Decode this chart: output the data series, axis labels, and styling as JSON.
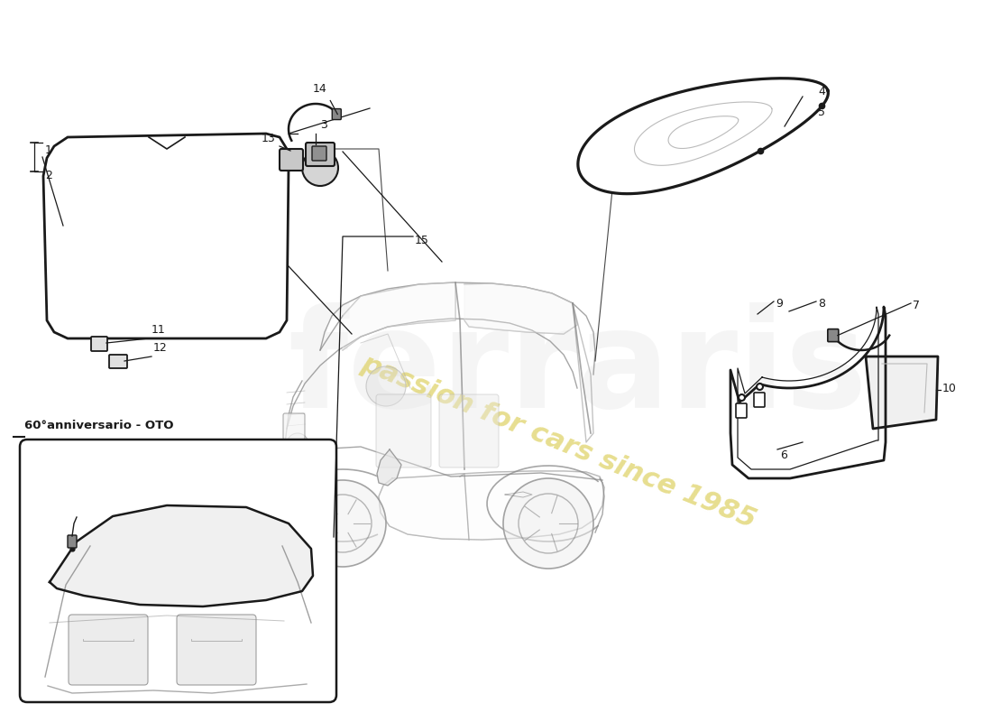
{
  "background_color": "#ffffff",
  "line_color": "#1a1a1a",
  "car_line_color": "#888888",
  "watermark_yellow": "#ddd060",
  "watermark_gray": "#cccccc",
  "watermark_text": "passion for cars since 1985",
  "box_label": "60°anniversario - OTO",
  "label_fontsize": 9,
  "lw_part": 2.0,
  "lw_thin": 0.9,
  "lw_car": 1.0
}
